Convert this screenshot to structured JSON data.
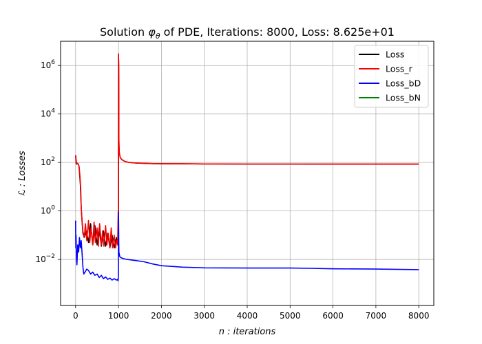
{
  "chart_data": {
    "type": "line",
    "title": {
      "prefix": "Solution ",
      "phi": "φ",
      "theta": "θ",
      "suffix": " of PDE, Iterations: 8000, Loss: 8.625e+01"
    },
    "xlabel": "n : iterations",
    "ylabel": "ℒ : Losses",
    "xlim": [
      -350,
      8350
    ],
    "ylim_log10": [
      -3.9,
      7.0
    ],
    "y_scale": "log",
    "grid": true,
    "legend_position": "top-right",
    "x_ticks": [
      0,
      1000,
      2000,
      3000,
      4000,
      5000,
      6000,
      7000,
      8000
    ],
    "y_ticks": [
      {
        "exp": -2,
        "base": "10",
        "sup": "−2"
      },
      {
        "exp": 0,
        "base": "10",
        "sup": "0"
      },
      {
        "exp": 2,
        "base": "10",
        "sup": "2"
      },
      {
        "exp": 4,
        "base": "10",
        "sup": "4"
      },
      {
        "exp": 6,
        "base": "10",
        "sup": "6"
      }
    ],
    "series": [
      {
        "name": "Loss",
        "color": "#000000",
        "x": [
          0,
          20,
          50,
          80,
          110,
          130,
          150,
          170,
          200,
          250,
          300,
          350,
          400,
          450,
          500,
          550,
          600,
          650,
          700,
          750,
          800,
          850,
          900,
          950,
          990,
          998,
          1000,
          1005,
          1010,
          1020,
          1040,
          1080,
          1150,
          1250,
          1400,
          1600,
          1800,
          2000,
          2500,
          3000,
          4000,
          5000,
          6000,
          7000,
          8000
        ],
        "y": [
          200,
          85,
          92,
          70,
          12,
          1.5,
          0.4,
          0.12,
          0.08,
          0.15,
          0.05,
          0.3,
          0.04,
          0.25,
          0.04,
          0.2,
          0.035,
          0.15,
          0.035,
          0.12,
          0.03,
          0.1,
          0.03,
          0.08,
          0.04,
          1.0,
          3000000,
          1000000,
          500,
          250,
          160,
          130,
          110,
          100,
          95,
          92,
          90,
          89,
          88,
          87,
          86,
          86,
          85,
          85,
          85
        ]
      },
      {
        "name": "Loss_r",
        "color": "#ff0000",
        "x": [
          0,
          10,
          20,
          50,
          80,
          100,
          120,
          130,
          150,
          170,
          200,
          230,
          260,
          300,
          330,
          360,
          400,
          430,
          460,
          500,
          530,
          560,
          600,
          630,
          660,
          700,
          730,
          760,
          800,
          830,
          860,
          900,
          930,
          960,
          980,
          990,
          996,
          1000,
          1003,
          1006,
          1010,
          1020,
          1040,
          1080,
          1150,
          1250,
          1400,
          1600,
          1800,
          2000,
          2500,
          3000,
          4000,
          5000,
          6000,
          7000,
          8000
        ],
        "y": [
          200,
          90,
          85,
          92,
          70,
          30,
          8,
          1.5,
          0.4,
          0.15,
          0.08,
          0.3,
          0.06,
          0.4,
          0.05,
          0.2,
          0.04,
          0.35,
          0.05,
          0.2,
          0.035,
          0.3,
          0.04,
          0.15,
          0.035,
          0.25,
          0.04,
          0.12,
          0.03,
          0.2,
          0.03,
          0.1,
          0.03,
          0.06,
          0.04,
          0.5,
          1.5,
          3000000,
          1500000,
          300000,
          1000,
          250,
          160,
          130,
          110,
          100,
          95,
          92,
          90,
          89,
          88,
          87,
          86,
          86,
          85,
          85,
          85
        ]
      },
      {
        "name": "Loss_bD",
        "color": "#0000ff",
        "x": [
          0,
          5,
          10,
          20,
          30,
          50,
          70,
          90,
          110,
          130,
          150,
          170,
          190,
          220,
          260,
          300,
          350,
          400,
          450,
          500,
          550,
          600,
          650,
          700,
          750,
          800,
          850,
          900,
          950,
          980,
          990,
          996,
          1000,
          1003,
          1006,
          1010,
          1030,
          1050,
          1100,
          1200,
          1400,
          1600,
          1800,
          2000,
          2500,
          3000,
          4000,
          5000,
          5500,
          6000,
          7000,
          8000
        ],
        "y": [
          0.4,
          0.03,
          0.1,
          0.01,
          0.006,
          0.04,
          0.02,
          0.08,
          0.03,
          0.06,
          0.02,
          0.005,
          0.0025,
          0.003,
          0.004,
          0.0035,
          0.0025,
          0.003,
          0.0022,
          0.0025,
          0.0018,
          0.0022,
          0.0016,
          0.0019,
          0.0015,
          0.0017,
          0.0014,
          0.0016,
          0.0014,
          0.0015,
          0.0013,
          0.002,
          0.9,
          0.3,
          0.05,
          0.02,
          0.013,
          0.012,
          0.011,
          0.01,
          0.009,
          0.008,
          0.0065,
          0.0055,
          0.0048,
          0.0045,
          0.0044,
          0.0044,
          0.0043,
          0.0041,
          0.004,
          0.0038
        ]
      },
      {
        "name": "Loss_bN",
        "color": "#008000",
        "x": [],
        "y": []
      }
    ]
  }
}
